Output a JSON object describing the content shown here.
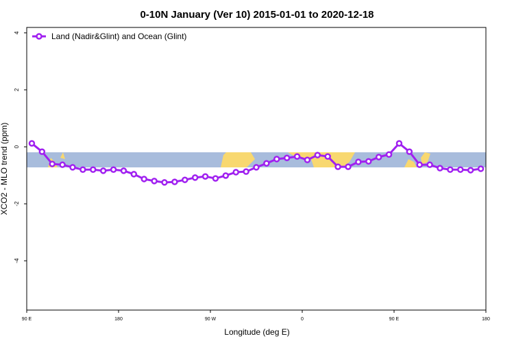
{
  "chart_data": {
    "type": "line",
    "title": "0-10N January (Ver 10)   2015-01-01 to 2020-12-18",
    "x_label": "Longitude (deg E)",
    "y_label": "XCO2 - MLO trend (ppm)",
    "xlim": [
      90,
      540
    ],
    "ylim": [
      -5.73,
      4.19
    ],
    "xticks": [
      {
        "value": 90,
        "label": "90 E"
      },
      180,
      {
        "value": 270,
        "label": "90 W"
      },
      {
        "value": 360,
        "label": "0"
      },
      {
        "value": 450,
        "label": "90 E"
      },
      {
        "value": 540,
        "label": "180"
      }
    ],
    "yticks": [
      -4,
      -2,
      0,
      2,
      4
    ],
    "legend": "upper left",
    "x": [
      95,
      105,
      115,
      125,
      135,
      145,
      155,
      165,
      175,
      185,
      195,
      205,
      215,
      225,
      235,
      245,
      255,
      265,
      275,
      285,
      295,
      305,
      315,
      325,
      335,
      345,
      355,
      365,
      375,
      385,
      395,
      405,
      415,
      425,
      435,
      445,
      455,
      465,
      475,
      485,
      495,
      505,
      515,
      525,
      535
    ],
    "series": [
      {
        "name": "Land (Nadir&Glint) and Ocean (Glint)",
        "color": "#a020f0",
        "values": [
          0.12,
          -0.17,
          -0.6,
          -0.63,
          -0.72,
          -0.8,
          -0.8,
          -0.84,
          -0.8,
          -0.84,
          -0.96,
          -1.13,
          -1.2,
          -1.25,
          -1.23,
          -1.16,
          -1.08,
          -1.04,
          -1.11,
          -1.01,
          -0.89,
          -0.87,
          -0.72,
          -0.58,
          -0.43,
          -0.39,
          -0.34,
          -0.46,
          -0.29,
          -0.34,
          -0.7,
          -0.7,
          -0.53,
          -0.51,
          -0.36,
          -0.27,
          0.12,
          -0.17,
          -0.63,
          -0.63,
          -0.75,
          -0.8,
          -0.8,
          -0.82,
          -0.77
        ]
      }
    ]
  }
}
